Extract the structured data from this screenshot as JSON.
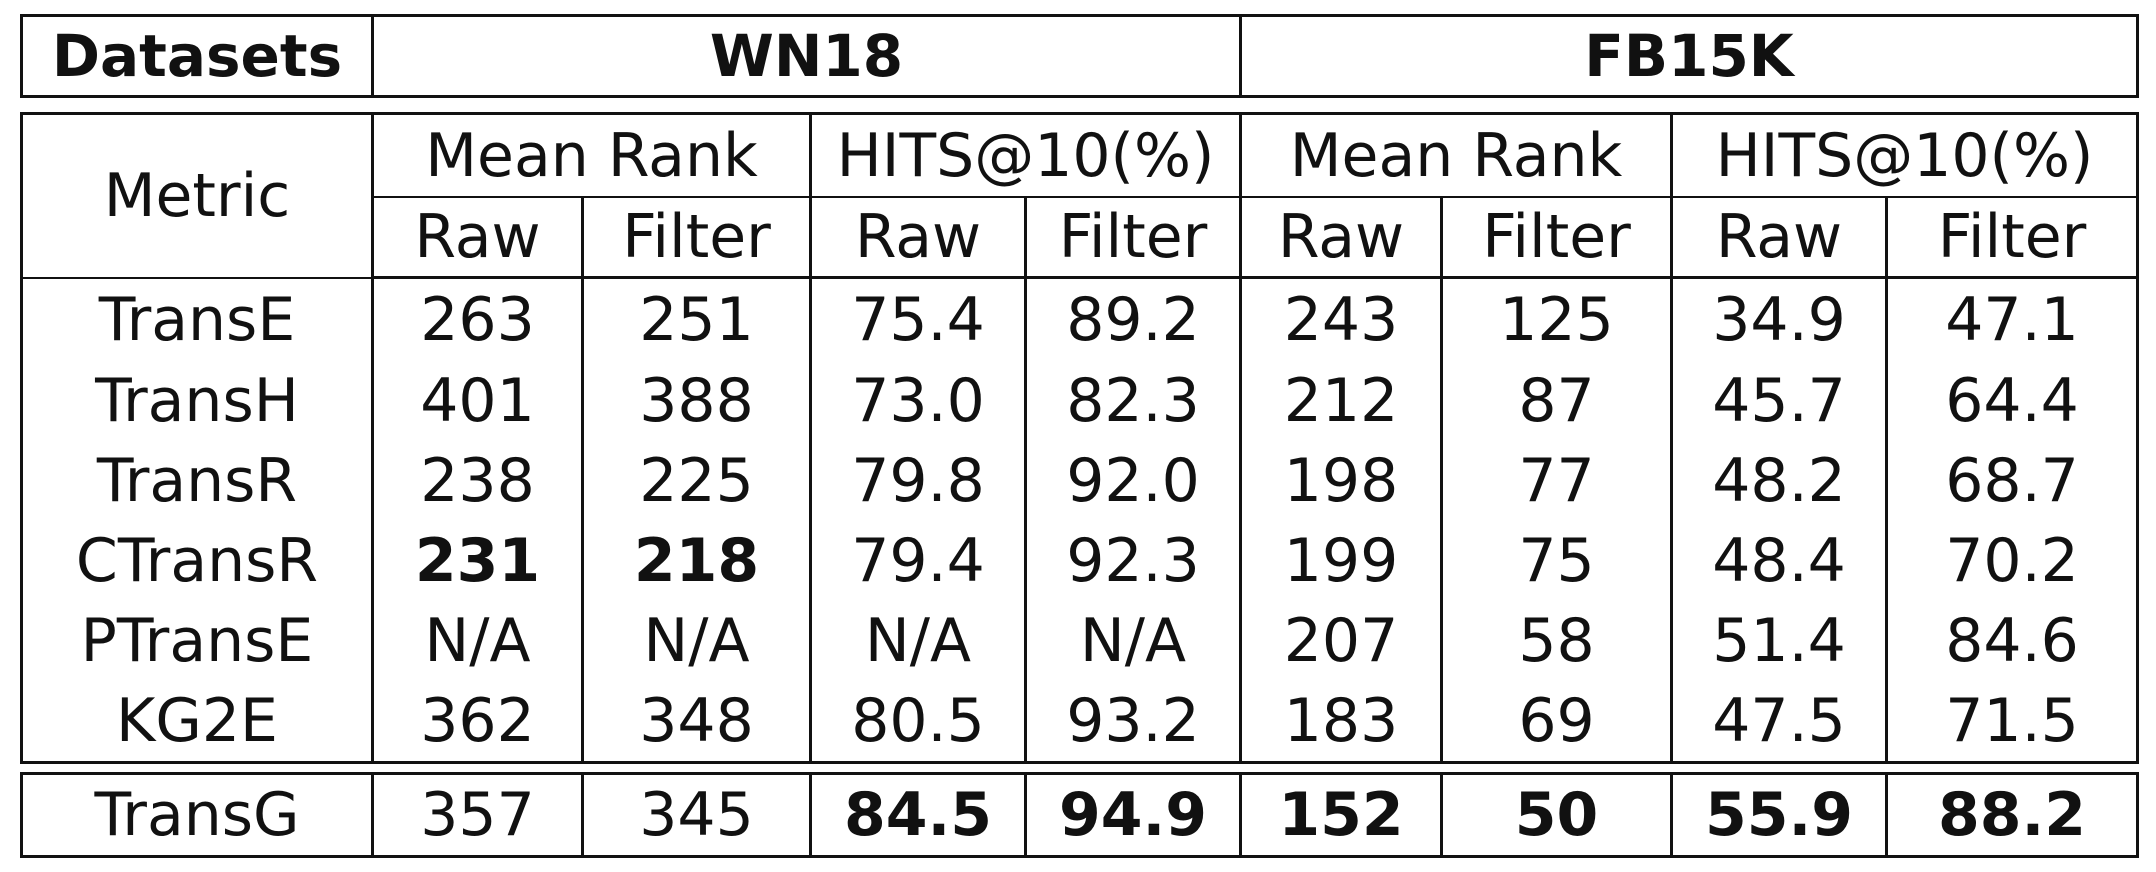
{
  "header": {
    "datasets_label": "Datasets",
    "wn18": "WN18",
    "fb15k": "FB15K"
  },
  "metric_header": {
    "metric_label": "Metric",
    "groups": [
      "Mean Rank",
      "HITS@10(%)",
      "Mean Rank",
      "HITS@10(%)"
    ],
    "subgroups": [
      "Raw",
      "Filter",
      "Raw",
      "Filter",
      "Raw",
      "Filter",
      "Raw",
      "Filter"
    ]
  },
  "rows": [
    {
      "model": "TransE",
      "values": [
        "263",
        "251",
        "75.4",
        "89.2",
        "243",
        "125",
        "34.9",
        "47.1"
      ],
      "bold": [
        false,
        false,
        false,
        false,
        false,
        false,
        false,
        false
      ]
    },
    {
      "model": "TransH",
      "values": [
        "401",
        "388",
        "73.0",
        "82.3",
        "212",
        "87",
        "45.7",
        "64.4"
      ],
      "bold": [
        false,
        false,
        false,
        false,
        false,
        false,
        false,
        false
      ]
    },
    {
      "model": "TransR",
      "values": [
        "238",
        "225",
        "79.8",
        "92.0",
        "198",
        "77",
        "48.2",
        "68.7"
      ],
      "bold": [
        false,
        false,
        false,
        false,
        false,
        false,
        false,
        false
      ]
    },
    {
      "model": "CTransR",
      "values": [
        "231",
        "218",
        "79.4",
        "92.3",
        "199",
        "75",
        "48.4",
        "70.2"
      ],
      "bold": [
        true,
        true,
        false,
        false,
        false,
        false,
        false,
        false
      ]
    },
    {
      "model": "PTransE",
      "values": [
        "N/A",
        "N/A",
        "N/A",
        "N/A",
        "207",
        "58",
        "51.4",
        "84.6"
      ],
      "bold": [
        false,
        false,
        false,
        false,
        false,
        false,
        false,
        false
      ]
    },
    {
      "model": "KG2E",
      "values": [
        "362",
        "348",
        "80.5",
        "93.2",
        "183",
        "69",
        "47.5",
        "71.5"
      ],
      "bold": [
        false,
        false,
        false,
        false,
        false,
        false,
        false,
        false
      ]
    }
  ],
  "ours": {
    "model": "TransG",
    "values": [
      "357",
      "345",
      "84.5",
      "94.9",
      "152",
      "50",
      "55.9",
      "88.2"
    ],
    "bold": [
      false,
      false,
      true,
      true,
      true,
      true,
      true,
      true
    ]
  }
}
